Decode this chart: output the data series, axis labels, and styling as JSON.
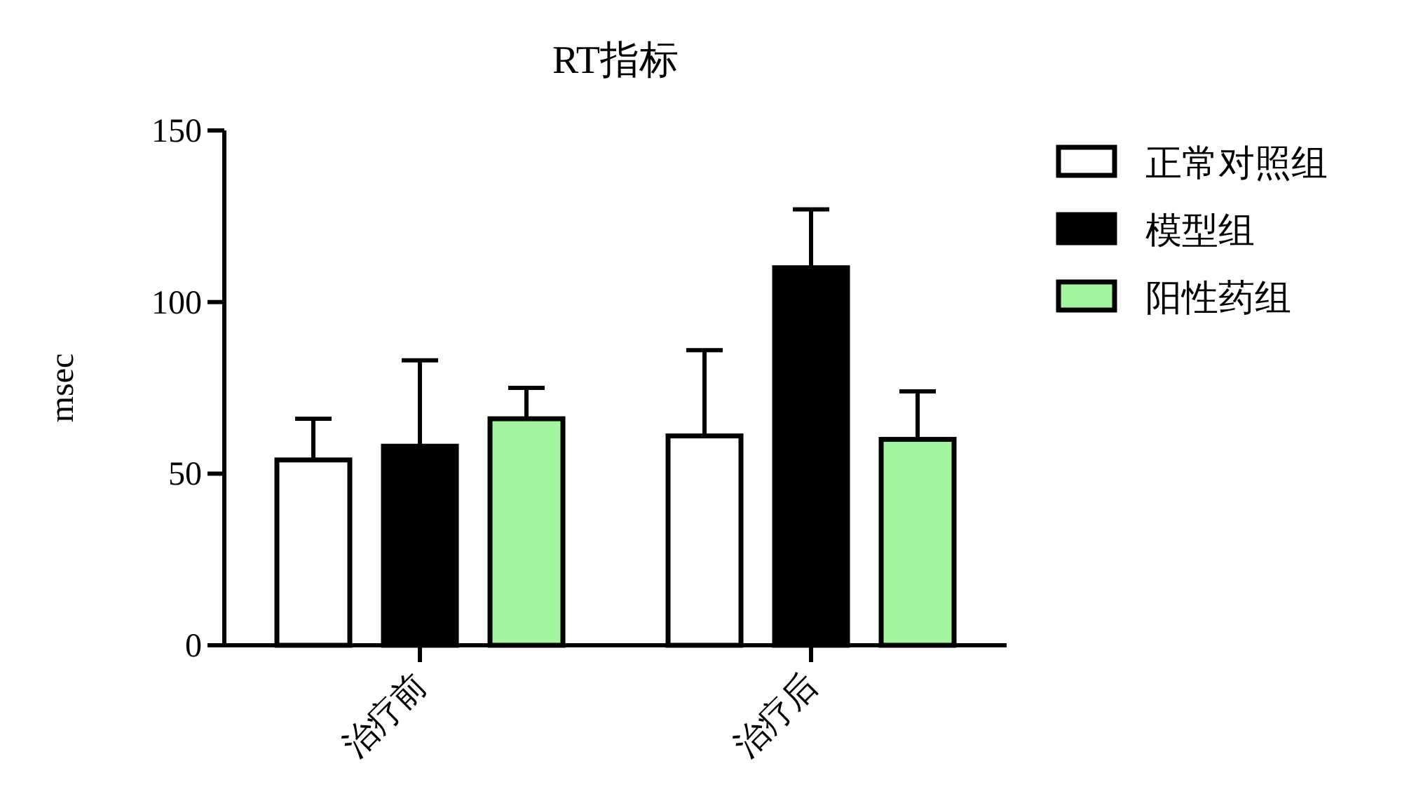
{
  "chart_data": {
    "type": "bar",
    "title": "RT指标",
    "ylabel": "msec",
    "categories": [
      "治疗前",
      "治疗后"
    ],
    "series": [
      {
        "name": "正常对照组",
        "color": "#ffffff",
        "values": [
          54,
          61
        ],
        "errors": [
          [
            54,
            66
          ],
          [
            61,
            86
          ]
        ]
      },
      {
        "name": "模型组",
        "color": "#000000",
        "values": [
          58,
          110
        ],
        "errors": [
          [
            58,
            83
          ],
          [
            110,
            127
          ]
        ]
      },
      {
        "name": "阳性药组",
        "color": "#a4f5a0",
        "values": [
          66,
          60
        ],
        "errors": [
          [
            66,
            75
          ],
          [
            60,
            74
          ]
        ]
      }
    ],
    "ylim": [
      0,
      150
    ],
    "yticks": [
      0,
      50,
      100,
      150
    ],
    "legend": "top right"
  }
}
